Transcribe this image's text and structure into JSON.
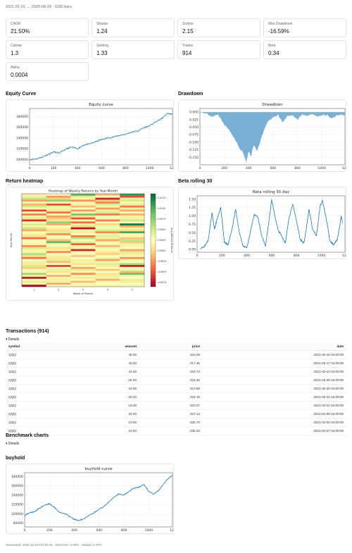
{
  "header": {
    "meta": "2021-01-01 → 2025-09-29 · 1190 bars"
  },
  "metrics": [
    {
      "label": "CAGR",
      "value": "21.50%"
    },
    {
      "label": "Sharpe",
      "value": "1.24"
    },
    {
      "label": "Sortino",
      "value": "2.15"
    },
    {
      "label": "Max Drawdown",
      "value": "-16.59%"
    },
    {
      "label": "Calmar",
      "value": "1.3"
    },
    {
      "label": "Sterling",
      "value": "1.33"
    },
    {
      "label": "Trades",
      "value": "914"
    },
    {
      "label": "Beta",
      "value": "0.34"
    },
    {
      "label": "Alpha",
      "value": "0.0004"
    }
  ],
  "sections": {
    "equity": "Equity Curve",
    "drawdown": "Drawdown",
    "heatmap": "Return heatmap",
    "beta": "Beta rolling 30",
    "transactions": "Transactions (914)",
    "benchmark": "Benchmark charts",
    "buyhold": "buyhold"
  },
  "details_label": "▾ Details",
  "transactions": {
    "columns": [
      "symbol",
      "amount",
      "price",
      "date"
    ],
    "rows": [
      [
        "QQQ",
        "48.00",
        "321.09",
        "2021-03-16 04:00:00"
      ],
      [
        "QQQ",
        "40.00",
        "317.45",
        "2021-03-17 04:00:00"
      ],
      [
        "QQQ",
        "34.00",
        "319.73",
        "2021-03-23 04:00:00"
      ],
      [
        "QQQ",
        "28.00",
        "315.45",
        "2021-03-29 04:00:00"
      ],
      [
        "QQQ",
        "23.00",
        "313.89",
        "2021-03-30 04:00:00"
      ],
      [
        "QQQ",
        "20.00",
        "316.16",
        "2021-03-31 04:00:00"
      ],
      [
        "QQQ",
        "18.00",
        "323.07",
        "2021-04-01 04:00:00"
      ],
      [
        "QQQ",
        "15.00",
        "327.13",
        "2021-04-05 04:00:00"
      ],
      [
        "QQQ",
        "10.00",
        "330.73",
        "2021-04-06 04:00:00"
      ],
      [
        "QQQ",
        "10.00",
        "330.33",
        "2021-04-07 04:00:00"
      ]
    ]
  },
  "footer": "Generated: 2025-12-04T21:00:31 · Risk-free: 0.00% · Market is SPY",
  "chart_data": [
    {
      "type": "line",
      "title": "Equity curve",
      "xlim": [
        0,
        1190
      ],
      "ylim": [
        90000,
        195000
      ],
      "xticks": [
        "0",
        "200",
        "400",
        "600",
        "800",
        "1000",
        "1200"
      ],
      "yticks": [
        "100000",
        "120000",
        "140000",
        "160000",
        "180000"
      ],
      "x": [
        0,
        50,
        100,
        150,
        200,
        250,
        300,
        350,
        400,
        450,
        500,
        550,
        600,
        650,
        700,
        750,
        800,
        850,
        900,
        950,
        1000,
        1050,
        1100,
        1150,
        1190
      ],
      "values": [
        100000,
        101000,
        104000,
        109000,
        114000,
        112000,
        119000,
        123000,
        120000,
        127000,
        129000,
        133000,
        137000,
        140000,
        142000,
        145000,
        147000,
        151000,
        153000,
        159000,
        163000,
        170000,
        176000,
        186000,
        184000
      ],
      "color": "#1f77b4"
    },
    {
      "type": "area",
      "title": "Drawdown",
      "xlim": [
        0,
        1190
      ],
      "ylim": [
        -0.175,
        0.012
      ],
      "xticks": [
        "0",
        "200",
        "400",
        "600",
        "800",
        "1000",
        "1200"
      ],
      "yticks": [
        "0.000",
        "-0.025",
        "-0.050",
        "-0.075",
        "-0.100",
        "-0.125",
        "-0.150"
      ],
      "x": [
        0,
        50,
        100,
        150,
        200,
        250,
        300,
        330,
        350,
        380,
        400,
        420,
        440,
        470,
        500,
        530,
        560,
        600,
        640,
        680,
        720,
        760,
        800,
        840,
        880,
        920,
        960,
        1000,
        1040,
        1080,
        1120,
        1160,
        1190
      ],
      "values": [
        0,
        -0.004,
        -0.015,
        -0.008,
        -0.042,
        -0.065,
        -0.1,
        -0.125,
        -0.131,
        -0.166,
        -0.13,
        -0.146,
        -0.11,
        -0.128,
        -0.09,
        -0.056,
        -0.03,
        -0.018,
        -0.008,
        -0.034,
        -0.012,
        -0.01,
        -0.024,
        -0.008,
        -0.012,
        -0.006,
        -0.015,
        -0.01,
        -0.009,
        -0.02,
        -0.012,
        -0.009,
        -0.012
      ],
      "color": "#7aafd6"
    },
    {
      "type": "heatmap",
      "title": "Heatmap of Weekly Returns by Year-Month",
      "xlabel": "Week of Month",
      "ylabel": "Year-Month",
      "colorbar_label": "Avg Weekly Returns",
      "columns": [
        "1",
        "2",
        "3",
        "4",
        "5"
      ],
      "colorbar_ticks": [
        "0.0125",
        "0.0100",
        "0.0075",
        "0.0050",
        "0.0025",
        "0.0000",
        "-0.0025",
        "-0.0050",
        "-0.0075"
      ],
      "vmin": -0.0085,
      "vmax": 0.0135,
      "values": [
        [
          0.0012,
          0.0026,
          0.0095,
          -0.0009,
          0.0108
        ],
        [
          0.0036,
          -0.0024,
          0.0044,
          0.0027,
          -0.0052
        ],
        [
          0.0057,
          -0.0002,
          0.0015,
          -0.0069,
          0.0038
        ],
        [
          -0.0021,
          0.0075,
          -0.0027,
          -0.0006,
          0.0049
        ],
        [
          0.0035,
          0.0016,
          0.0018,
          -0.0031,
          0.0021
        ],
        [
          -0.0014,
          -0.0051,
          0.0014,
          0.0045,
          0.0008
        ],
        [
          0.0051,
          0.0041,
          -0.0012,
          0.0033,
          -0.0035
        ],
        [
          0.0016,
          0.0034,
          0.0027,
          -0.0022,
          0.0039
        ],
        [
          -0.0056,
          0.0008,
          -0.0024,
          0.0011,
          -0.0017
        ],
        [
          0.0029,
          -0.0039,
          0.0019,
          0.0049,
          0.0026
        ],
        [
          -0.0034,
          0.0033,
          0.0082,
          -0.0036,
          -0.0016
        ],
        [
          0.0037,
          -0.0021,
          0.0004,
          0.0024,
          0.0036
        ],
        [
          0.0007,
          -0.0006,
          -0.0049,
          0.0021,
          0.0014
        ],
        [
          -0.0063,
          0.0006,
          0.0029,
          -0.0034,
          0.0052
        ],
        [
          0.0021,
          0.0073,
          -0.0039,
          0.0022,
          0.0023
        ],
        [
          0.0045,
          -0.0016,
          0.0039,
          -0.0001,
          0.0125
        ],
        [
          0.0014,
          0.0026,
          0.0001,
          0.0033,
          -0.0018
        ],
        [
          0.0053,
          0.0015,
          -0.0076,
          0.0031,
          0.0036
        ],
        [
          -0.0017,
          0.0002,
          0.0036,
          0.0048,
          0.0004
        ],
        [
          0.0022,
          0.0041,
          0.0011,
          -0.0029,
          0.0105
        ],
        [
          0.0036,
          -0.0027,
          0.0025,
          0.0016,
          0.0022
        ],
        [
          0.0003,
          0.0029,
          -0.0034,
          0.0042,
          0.0031
        ],
        [
          -0.0041,
          0.0017,
          0.0058,
          0.0013,
          -0.0007
        ],
        [
          0.0027,
          -0.0008,
          0.0022,
          -0.0019,
          0.0055
        ],
        [
          0.0023,
          0.0093,
          0.0041,
          0.0032,
          -0.0006
        ],
        [
          0.0014,
          0.0017,
          -0.0045,
          0.0018,
          0.0037
        ],
        [
          -0.0028,
          0.0031,
          0.0033,
          -0.0013,
          0.0015
        ],
        [
          0.0045,
          0.0003,
          0.0012,
          0.0036,
          0.0024
        ],
        [
          0.0016,
          0.0013,
          -0.0068,
          0.0022,
          -0.0021
        ],
        [
          0.0033,
          -0.0031,
          0.0027,
          0.0007,
          0.0046
        ],
        [
          0.0061,
          0.0022,
          0.0017,
          -0.0003,
          0.0012
        ],
        [
          0.0003,
          0.0036,
          -0.0006,
          0.0029,
          0.0031
        ],
        [
          -0.0038,
          0.0008,
          0.0025,
          0.0038,
          -0.0026
        ],
        [
          0.0024,
          0.0044,
          0.0013,
          -0.0023,
          0.0035
        ],
        [
          0.0037,
          -0.0011,
          0.0036,
          0.0017,
          0.0028
        ],
        [
          0.0012,
          0.0029,
          0.0005,
          0.0044,
          0.0063
        ],
        [
          0.0048,
          -0.0056,
          0.0022,
          0.0011,
          -0.0071
        ],
        [
          -0.0006,
          0.0019,
          -0.0019,
          0.0031,
          0.0019
        ],
        [
          0.0031,
          0.0038,
          0.0042,
          -0.0008,
          0.0034
        ],
        [
          0.0018,
          0.0004,
          0.0018,
          0.0025,
          -0.0011
        ],
        [
          0.0069,
          0.0026,
          -0.0029,
          0.0005,
          0.0088
        ],
        [
          0.0009,
          -0.0015,
          0.0034,
          0.0039,
          0.0016
        ],
        [
          -0.0072,
          0.0033,
          0.0007,
          0.0014,
          0.0027
        ],
        [
          0.0027,
          0.0012,
          0.0028,
          -0.0015,
          0.0041
        ],
        [
          0.0041,
          0.0037,
          -0.0012,
          0.0032,
          0.0009
        ],
        [
          0.0015,
          -0.0018,
          0.0031,
          0.0021,
          0.0022
        ],
        [
          -0.0081,
          0.0024,
          0.0016,
          0.0036,
          0.0033
        ]
      ]
    },
    {
      "type": "line",
      "title": "Beta rolling 30 day",
      "xlim": [
        0,
        1190
      ],
      "ylim": [
        -0.08,
        1.6
      ],
      "xticks": [
        "0",
        "200",
        "400",
        "600",
        "800",
        "1000",
        "1200"
      ],
      "yticks": [
        "0.00",
        "0.25",
        "0.50",
        "0.75",
        "1.00",
        "1.25",
        "1.50"
      ],
      "x": [
        30,
        60,
        90,
        120,
        140,
        160,
        190,
        220,
        250,
        280,
        310,
        340,
        370,
        400,
        430,
        460,
        490,
        520,
        550,
        580,
        600,
        620,
        650,
        680,
        710,
        740,
        770,
        800,
        830,
        860,
        880,
        900,
        930,
        960,
        990,
        1010,
        1040,
        1070,
        1100,
        1130,
        1160,
        1170
      ],
      "values": [
        0.05,
        0.1,
        0.3,
        1.1,
        0.6,
        0.9,
        1.25,
        0.2,
        0.15,
        0.6,
        1.2,
        0.5,
        0.1,
        0.05,
        0.55,
        1.05,
        0.95,
        0.4,
        0.1,
        0.9,
        1.5,
        1.1,
        0.6,
        0.4,
        0.2,
        0.95,
        1.35,
        0.85,
        0.3,
        0.2,
        0.65,
        1.2,
        0.6,
        0.4,
        1.3,
        1.45,
        0.9,
        0.25,
        0.15,
        0.3,
        1.0,
        0.78
      ],
      "color": "#1f77b4"
    },
    {
      "type": "line",
      "title": "buyhold curve",
      "xlim": [
        0,
        1190
      ],
      "ylim": [
        72000,
        188000
      ],
      "xticks": [
        "0",
        "200",
        "400",
        "600",
        "800",
        "1000",
        "1200"
      ],
      "yticks": [
        "80000",
        "100000",
        "120000",
        "140000",
        "160000",
        "180000"
      ],
      "x": [
        0,
        40,
        80,
        120,
        160,
        200,
        240,
        280,
        320,
        360,
        400,
        440,
        480,
        520,
        560,
        600,
        640,
        680,
        720,
        760,
        800,
        840,
        880,
        920,
        960,
        1000,
        1040,
        1080,
        1120,
        1160,
        1190
      ],
      "values": [
        97000,
        102000,
        105000,
        112000,
        118000,
        122000,
        114000,
        103000,
        101000,
        95000,
        88000,
        86000,
        90000,
        97000,
        103000,
        110000,
        116000,
        126000,
        136000,
        143000,
        140000,
        148000,
        155000,
        157000,
        163000,
        148000,
        142000,
        150000,
        165000,
        177000,
        182000
      ],
      "color": "#1f77b4"
    }
  ]
}
